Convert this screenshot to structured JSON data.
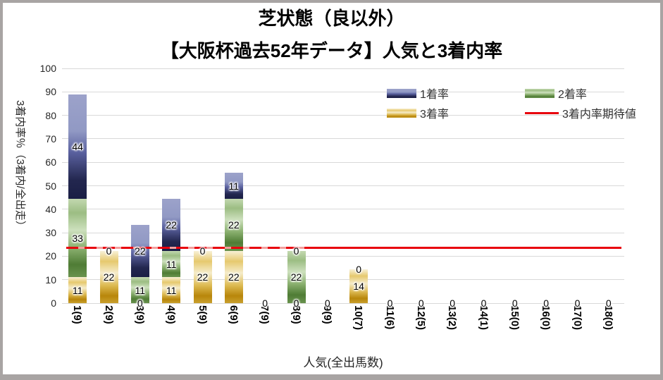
{
  "title": {
    "line1": "芝状態（良以外）",
    "line2": "【大阪杯過去52年データ】人気と3着内率"
  },
  "axes": {
    "y_title": "3着内率％（3着内/全出走）",
    "x_title": "人気(全出馬数)",
    "y_ticks": [
      0,
      10,
      20,
      30,
      40,
      50,
      60,
      70,
      80,
      90,
      100
    ],
    "y_range": [
      0,
      100
    ]
  },
  "legend": {
    "items": [
      {
        "label": "1着率",
        "swatch": "win-gradient-box"
      },
      {
        "label": "2着率",
        "swatch": "place-gradient-box"
      },
      {
        "label": "3着率",
        "swatch": "show-gradient-box"
      },
      {
        "label": "3着内率期待値",
        "swatch": "red-line"
      }
    ]
  },
  "chart_data": {
    "type": "bar",
    "stacked": true,
    "stack_order_bottom_to_top": [
      "3着率",
      "2着率",
      "1着率"
    ],
    "categories": [
      "1(9)",
      "2(9)",
      "3(9)",
      "4(9)",
      "5(9)",
      "6(9)",
      "7(9)",
      "8(9)",
      "9(9)",
      "10(7)",
      "11(6)",
      "12(5)",
      "13(2)",
      "14(1)",
      "15(0)",
      "16(0)",
      "17(0)",
      "18(0)"
    ],
    "series": [
      {
        "name": "3着率",
        "key": "show",
        "values": [
          11.1,
          22.2,
          0,
          11.1,
          22.2,
          22.2,
          0,
          0,
          0,
          14.3,
          0,
          0,
          0,
          0,
          0,
          0,
          0,
          0
        ],
        "labels": [
          "11",
          "22",
          "0",
          "11",
          "22",
          "22",
          "0",
          "0",
          "0",
          "14",
          "0",
          "0",
          "0",
          "0",
          "0",
          "0",
          "0",
          "0"
        ]
      },
      {
        "name": "2着率",
        "key": "place",
        "values": [
          33.3,
          0,
          11.1,
          11.1,
          0,
          22.2,
          0,
          22.2,
          0,
          0,
          0,
          0,
          0,
          0,
          0,
          0,
          0,
          0
        ],
        "labels": [
          "33",
          "0",
          "11",
          "11",
          "0",
          "22",
          "0",
          "22",
          "0",
          "0",
          "0",
          "0",
          "0",
          "0",
          "0",
          "0",
          "0",
          "0"
        ]
      },
      {
        "name": "1着率",
        "key": "win",
        "values": [
          44.4,
          0,
          22.2,
          22.2,
          0,
          11.1,
          0,
          0,
          0,
          0,
          0,
          0,
          0,
          0,
          0,
          0,
          0,
          0
        ],
        "labels": [
          "44",
          "0",
          "22",
          "22",
          "0",
          "11",
          "0",
          "0",
          "0",
          "0",
          "0",
          "0",
          "0",
          "0",
          "0",
          "0",
          "0",
          "0"
        ]
      }
    ],
    "expected_line": {
      "name": "3着内率期待値",
      "value": 23.5,
      "style_left": "dashed",
      "style_right": "solid"
    },
    "grid": true,
    "legend_position": "top-right",
    "colors": {
      "win_light": "#9ca2ca",
      "win_dark": "#1b1f49",
      "place_light": "#c3d8b0",
      "place_dark": "#4f7c35",
      "show_light": "#f5ecca",
      "show_dark": "#b8860b",
      "expected_line": "#e8000d",
      "gridline": "#d9d9d9",
      "frame_border": "#a8a4a3",
      "data_label": "#000000"
    }
  }
}
